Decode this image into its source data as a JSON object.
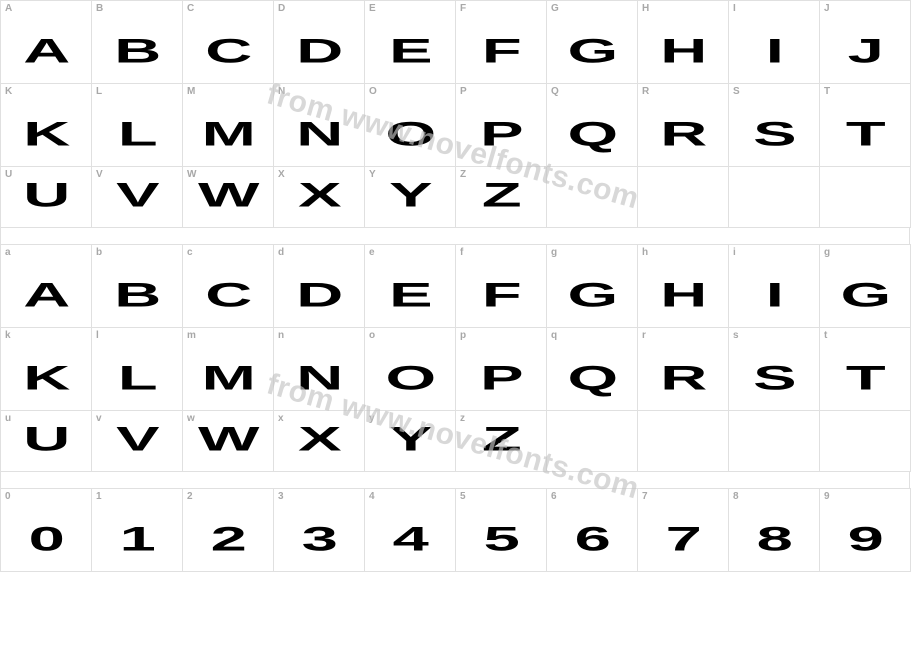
{
  "watermark_text": "from www.novelfonts.com",
  "watermark_color": "#c4c4c4",
  "grid_border_color": "#e0e0e0",
  "key_label_color": "#a8a8a8",
  "glyph_color": "#000000",
  "background_color": "#ffffff",
  "key_label_fontsize": 10,
  "glyph_fontsize": 42,
  "sections": [
    {
      "name": "uppercase",
      "rows": [
        {
          "keys": [
            "A",
            "B",
            "C",
            "D",
            "E",
            "F",
            "G",
            "H",
            "I",
            "J"
          ],
          "glyphs": [
            "A",
            "B",
            "C",
            "D",
            "E",
            "F",
            "G",
            "H",
            "I",
            "J"
          ]
        },
        {
          "keys": [
            "K",
            "L",
            "M",
            "N",
            "O",
            "P",
            "Q",
            "R",
            "S",
            "T"
          ],
          "glyphs": [
            "K",
            "L",
            "M",
            "N",
            "O",
            "P",
            "Q",
            "R",
            "S",
            "T"
          ]
        },
        {
          "keys": [
            "U",
            "V",
            "W",
            "X",
            "Y",
            "Z",
            "",
            "",
            "",
            ""
          ],
          "glyphs": [
            "U",
            "V",
            "W",
            "X",
            "Y",
            "Z",
            "",
            "",
            "",
            ""
          ]
        }
      ]
    },
    {
      "name": "lowercase",
      "rows": [
        {
          "keys": [
            "a",
            "b",
            "c",
            "d",
            "e",
            "f",
            "g",
            "h",
            "i",
            "g"
          ],
          "glyphs": [
            "A",
            "B",
            "C",
            "D",
            "E",
            "F",
            "G",
            "H",
            "I",
            "G"
          ]
        },
        {
          "keys": [
            "k",
            "l",
            "m",
            "n",
            "o",
            "p",
            "q",
            "r",
            "s",
            "t"
          ],
          "glyphs": [
            "K",
            "L",
            "M",
            "N",
            "O",
            "P",
            "Q",
            "R",
            "S",
            "T"
          ]
        },
        {
          "keys": [
            "u",
            "v",
            "w",
            "x",
            "y",
            "z",
            "",
            "",
            "",
            ""
          ],
          "glyphs": [
            "U",
            "V",
            "W",
            "X",
            "Y",
            "Z",
            "",
            "",
            "",
            ""
          ]
        }
      ]
    },
    {
      "name": "digits",
      "rows": [
        {
          "keys": [
            "0",
            "1",
            "2",
            "3",
            "4",
            "5",
            "6",
            "7",
            "8",
            "9"
          ],
          "glyphs": [
            "0",
            "1",
            "2",
            "3",
            "4",
            "5",
            "6",
            "7",
            "8",
            "9"
          ]
        }
      ]
    }
  ]
}
